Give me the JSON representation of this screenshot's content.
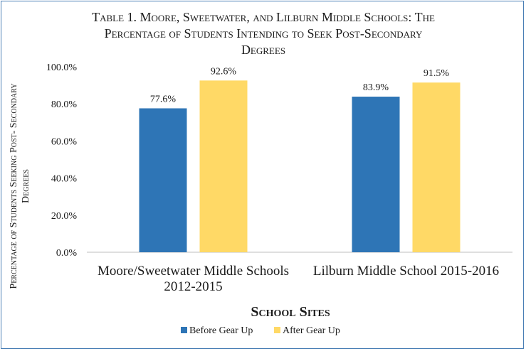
{
  "chart_data": {
    "type": "bar",
    "title_lines": [
      "Table 1. Moore, Sweetwater, and Lilburn Middle Schools: The",
      "Percentage of Students Intending to Seek Post-Secondary",
      "Degrees"
    ],
    "categories": [
      [
        "Moore/Sweetwater Middle Schools",
        "2012-2015"
      ],
      [
        "Lilburn Middle School 2015-2016"
      ]
    ],
    "series": [
      {
        "name": "Before Gear Up",
        "color": "#2e75b6",
        "values": [
          77.6,
          83.9
        ],
        "labels": [
          "77.6%",
          "83.9%"
        ]
      },
      {
        "name": "After Gear Up",
        "color": "#ffd966",
        "values": [
          92.6,
          91.5
        ],
        "labels": [
          "92.6%",
          "91.5%"
        ]
      }
    ],
    "xlabel": "School Sites",
    "ylabel_lines": [
      "Percentage of Students Seeking Post- Secondary",
      "Degrees"
    ],
    "ylim": [
      0,
      100
    ],
    "yticks": [
      0,
      20,
      40,
      60,
      80,
      100
    ],
    "ytick_labels": [
      "0.0%",
      "20.0%",
      "40.0%",
      "60.0%",
      "80.0%",
      "100.0%"
    ],
    "grid": false,
    "legend_position": "bottom-center"
  }
}
